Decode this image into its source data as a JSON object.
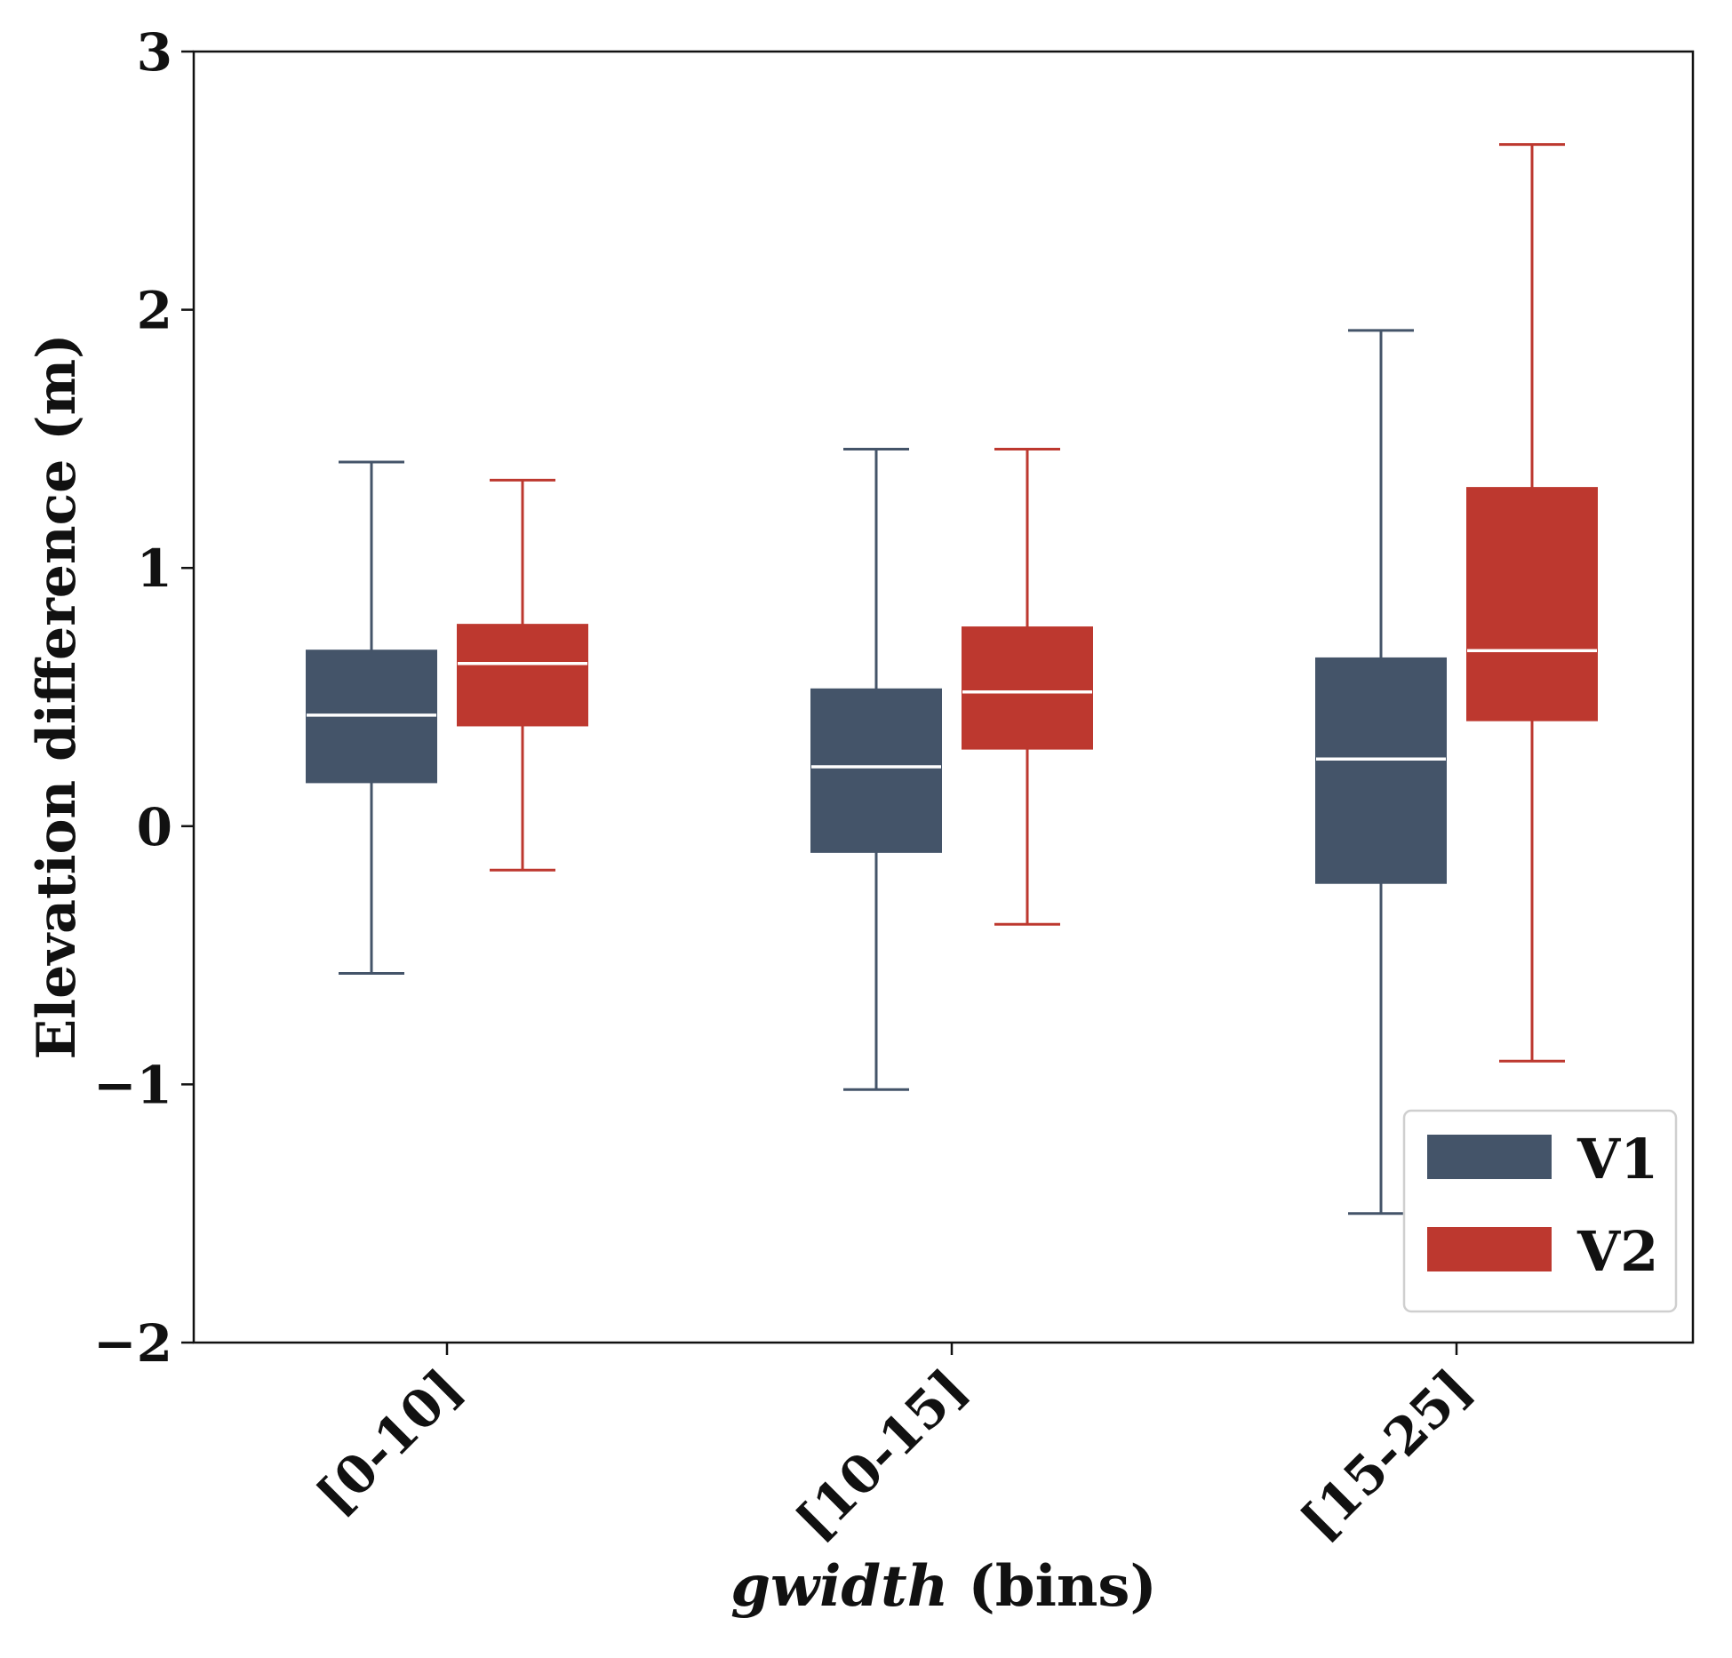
{
  "chart_data": {
    "type": "box",
    "title": "",
    "ylabel": "Elevation difference (m)",
    "xlabel_italic": "gwidth",
    "xlabel_suffix": " (bins)",
    "ylim": [
      -2,
      3
    ],
    "yticks": [
      -2,
      -1,
      0,
      1,
      2,
      3
    ],
    "ytick_labels": [
      "−2",
      "−1",
      "0",
      "1",
      "2",
      "3"
    ],
    "categories": [
      "[0-10]",
      "[10-15]",
      "[15-25]"
    ],
    "series": [
      {
        "name": "V1",
        "color": "#445469",
        "boxes": [
          {
            "whisker_low": -0.57,
            "q1": 0.17,
            "median": 0.43,
            "q3": 0.68,
            "whisker_high": 1.41
          },
          {
            "whisker_low": -1.02,
            "q1": -0.1,
            "median": 0.23,
            "q3": 0.53,
            "whisker_high": 1.46
          },
          {
            "whisker_low": -1.5,
            "q1": -0.22,
            "median": 0.26,
            "q3": 0.65,
            "whisker_high": 1.92
          }
        ]
      },
      {
        "name": "V2",
        "color": "#bd382f",
        "boxes": [
          {
            "whisker_low": -0.17,
            "q1": 0.39,
            "median": 0.63,
            "q3": 0.78,
            "whisker_high": 1.34
          },
          {
            "whisker_low": -0.38,
            "q1": 0.3,
            "median": 0.52,
            "q3": 0.77,
            "whisker_high": 1.46
          },
          {
            "whisker_low": -0.91,
            "q1": 0.41,
            "median": 0.68,
            "q3": 1.31,
            "whisker_high": 2.64
          }
        ]
      }
    ],
    "legend": {
      "position": "lower-right",
      "entries": [
        "V1",
        "V2"
      ]
    },
    "grid": false
  }
}
